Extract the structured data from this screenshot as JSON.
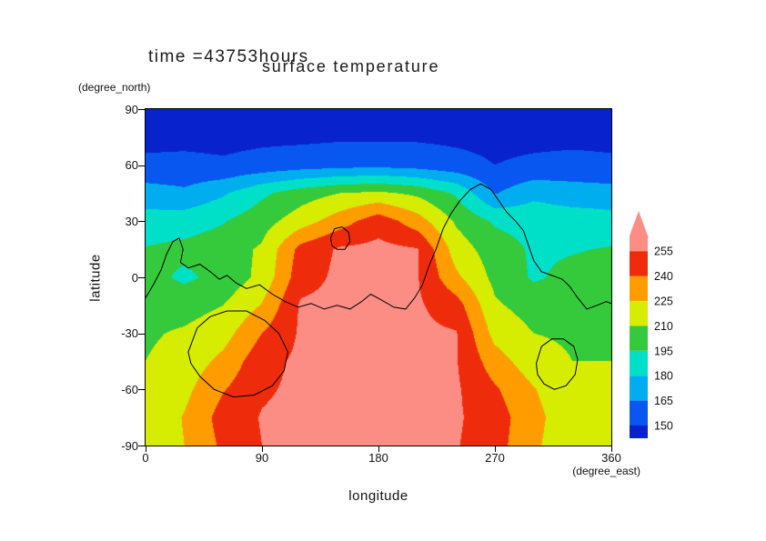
{
  "figure": {
    "title": "time =43753hours",
    "subtitle": "surface temperature",
    "x_axis": {
      "label": "longitude",
      "unit": "(degree_east)",
      "ticks": [
        0,
        90,
        180,
        270,
        360
      ],
      "range": [
        0,
        360
      ]
    },
    "y_axis": {
      "label": "latitude",
      "unit": "(degree_north)",
      "ticks": [
        90,
        60,
        30,
        0,
        -30,
        -60,
        -90
      ],
      "range": [
        -90,
        90
      ]
    }
  },
  "colorbar": {
    "labels": [
      "255",
      "240",
      "225",
      "210",
      "195",
      "180",
      "165",
      "150"
    ]
  },
  "chart_data": {
    "type": "heatmap",
    "title": "surface temperature",
    "annotation": "time =43753hours",
    "xlabel": "longitude (degree_east)",
    "ylabel": "latitude (degree_north)",
    "xlim": [
      0,
      360
    ],
    "ylim": [
      -90,
      90
    ],
    "legend_position": "right-colorbar",
    "levels": [
      150,
      165,
      180,
      195,
      210,
      225,
      240,
      255
    ],
    "colors": [
      "#0822CE",
      "#0857F0",
      "#00AEEF",
      "#00E0C8",
      "#35C93C",
      "#D6EC00",
      "#FF9C00",
      "#EE2C0C",
      "#FB8D85"
    ],
    "x": [
      0,
      30,
      60,
      90,
      120,
      150,
      180,
      210,
      240,
      270,
      300,
      330,
      360
    ],
    "y": [
      90,
      75,
      60,
      45,
      30,
      15,
      0,
      -15,
      -30,
      -45,
      -60,
      -75,
      -90
    ],
    "values": [
      [
        144,
        144,
        144,
        144,
        144,
        145,
        145,
        145,
        144,
        144,
        144,
        144,
        144
      ],
      [
        146,
        146,
        146,
        147,
        147,
        148,
        148,
        148,
        147,
        146,
        146,
        146,
        146
      ],
      [
        153,
        154,
        152,
        155,
        158,
        160,
        161,
        159,
        155,
        150,
        153,
        155,
        153
      ],
      [
        172,
        168,
        178,
        192,
        203,
        210,
        213,
        207,
        193,
        164,
        176,
        172,
        171
      ],
      [
        186,
        188,
        194,
        204,
        218,
        233,
        249,
        232,
        208,
        193,
        190,
        188,
        186
      ],
      [
        196,
        199,
        203,
        212,
        245,
        257,
        259,
        256,
        218,
        202,
        193,
        194,
        196
      ],
      [
        201,
        192,
        200,
        214,
        249,
        258,
        259,
        256,
        228,
        206,
        193,
        199,
        201
      ],
      [
        205,
        204,
        210,
        226,
        257,
        259,
        259,
        257,
        247,
        212,
        204,
        205,
        205
      ],
      [
        208,
        212,
        219,
        240,
        257,
        259,
        259,
        258,
        256,
        220,
        210,
        208,
        208
      ],
      [
        210,
        216,
        229,
        250,
        258,
        259,
        259,
        258,
        256,
        232,
        216,
        210,
        210
      ],
      [
        212,
        221,
        239,
        253,
        258,
        259,
        259,
        259,
        257,
        242,
        226,
        212,
        212
      ],
      [
        213,
        226,
        246,
        256,
        259,
        259,
        259,
        259,
        257,
        247,
        230,
        214,
        213
      ],
      [
        212,
        225,
        243,
        255,
        258,
        259,
        259,
        258,
        256,
        246,
        228,
        213,
        212
      ]
    ],
    "overlay_lines": [
      {
        "name": "coastline-main",
        "closed": false,
        "points": [
          [
            0,
            -11
          ],
          [
            6,
            -4
          ],
          [
            12,
            4
          ],
          [
            16,
            12
          ],
          [
            21,
            19
          ],
          [
            26,
            21
          ],
          [
            29,
            15
          ],
          [
            27,
            8
          ],
          [
            33,
            5
          ],
          [
            42,
            7
          ],
          [
            50,
            3
          ],
          [
            57,
            -1
          ],
          [
            63,
            1
          ],
          [
            70,
            -3
          ],
          [
            78,
            -6
          ],
          [
            88,
            -4
          ],
          [
            98,
            -9
          ],
          [
            108,
            -13
          ],
          [
            118,
            -16
          ],
          [
            128,
            -14
          ],
          [
            138,
            -17
          ],
          [
            148,
            -15
          ],
          [
            158,
            -17
          ],
          [
            167,
            -13
          ],
          [
            174,
            -9
          ],
          [
            182,
            -12
          ],
          [
            192,
            -16
          ],
          [
            201,
            -17
          ],
          [
            208,
            -11
          ],
          [
            214,
            -4
          ],
          [
            219,
            6
          ],
          [
            225,
            16
          ],
          [
            230,
            26
          ],
          [
            236,
            34
          ],
          [
            243,
            41
          ],
          [
            251,
            47
          ],
          [
            259,
            50
          ],
          [
            267,
            47
          ],
          [
            273,
            41
          ],
          [
            279,
            35
          ],
          [
            286,
            30
          ],
          [
            292,
            25
          ],
          [
            296,
            17
          ],
          [
            300,
            9
          ],
          [
            306,
            3
          ],
          [
            314,
            1
          ],
          [
            322,
            -1
          ],
          [
            328,
            -5
          ],
          [
            334,
            -11
          ],
          [
            341,
            -17
          ],
          [
            349,
            -15
          ],
          [
            356,
            -13
          ],
          [
            360,
            -14
          ]
        ]
      },
      {
        "name": "coastline-island-southwest",
        "closed": true,
        "points": [
          [
            33,
            -40
          ],
          [
            40,
            -27
          ],
          [
            50,
            -21
          ],
          [
            63,
            -18
          ],
          [
            78,
            -18
          ],
          [
            92,
            -23
          ],
          [
            103,
            -30
          ],
          [
            110,
            -40
          ],
          [
            107,
            -50
          ],
          [
            98,
            -58
          ],
          [
            84,
            -63
          ],
          [
            68,
            -64
          ],
          [
            53,
            -60
          ],
          [
            42,
            -53
          ],
          [
            35,
            -46
          ]
        ]
      },
      {
        "name": "coastline-island-southeast",
        "closed": true,
        "points": [
          [
            302,
            -46
          ],
          [
            306,
            -37
          ],
          [
            314,
            -33
          ],
          [
            323,
            -33
          ],
          [
            331,
            -37
          ],
          [
            334,
            -44
          ],
          [
            332,
            -52
          ],
          [
            325,
            -58
          ],
          [
            316,
            -60
          ],
          [
            308,
            -57
          ],
          [
            303,
            -52
          ]
        ]
      },
      {
        "name": "coastline-islet-center",
        "closed": true,
        "points": [
          [
            143,
            21
          ],
          [
            146,
            26
          ],
          [
            152,
            27
          ],
          [
            157,
            24
          ],
          [
            158,
            19
          ],
          [
            154,
            15
          ],
          [
            148,
            15
          ],
          [
            144,
            17
          ]
        ]
      }
    ]
  }
}
